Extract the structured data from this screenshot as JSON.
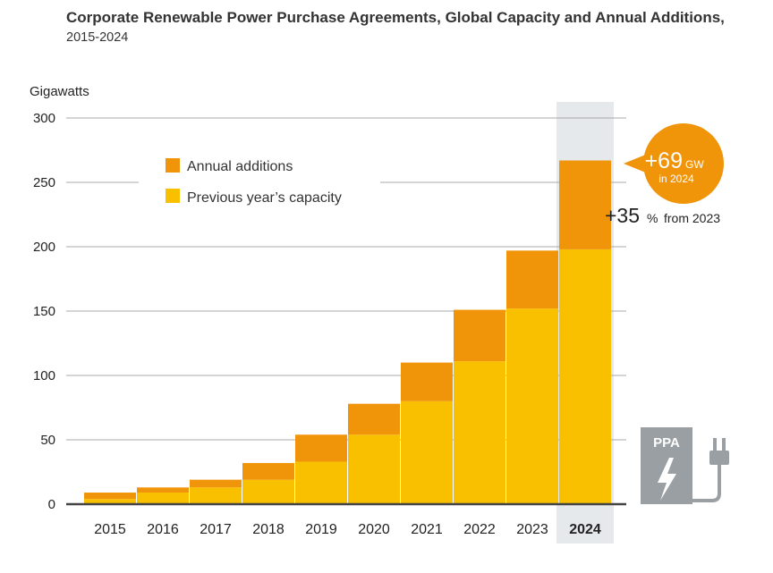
{
  "header": {
    "title": "Corporate Renewable Power Purchase Agreements, Global Capacity and Annual Additions,",
    "subtitle": "2015-2024"
  },
  "chart_data": {
    "type": "bar",
    "stacked": true,
    "unit_label": "Gigawatts",
    "categories": [
      "2015",
      "2016",
      "2017",
      "2018",
      "2019",
      "2020",
      "2021",
      "2022",
      "2023",
      "2024"
    ],
    "highlight_category": "2024",
    "series": [
      {
        "name": "Previous year’s capacity",
        "color": "#F9C000",
        "values": [
          4,
          9,
          13,
          19,
          33,
          54,
          80,
          111,
          152,
          198
        ]
      },
      {
        "name": "Annual additions",
        "color": "#F0940A",
        "values": [
          5,
          4,
          6,
          13,
          21,
          24,
          30,
          40,
          45,
          69
        ]
      }
    ],
    "ylim": [
      0,
      300
    ],
    "yticks": [
      0,
      50,
      100,
      150,
      200,
      250,
      300
    ],
    "grid": true,
    "legend_position": "top-left",
    "annotations": {
      "bubble_value": "+69",
      "bubble_unit": "GW",
      "bubble_sub": "in 2024",
      "growth_value": "+35",
      "growth_suffix": "%",
      "growth_note": "from 2023"
    },
    "icon": {
      "name": "ppa-plug-icon",
      "label": "PPA"
    }
  }
}
